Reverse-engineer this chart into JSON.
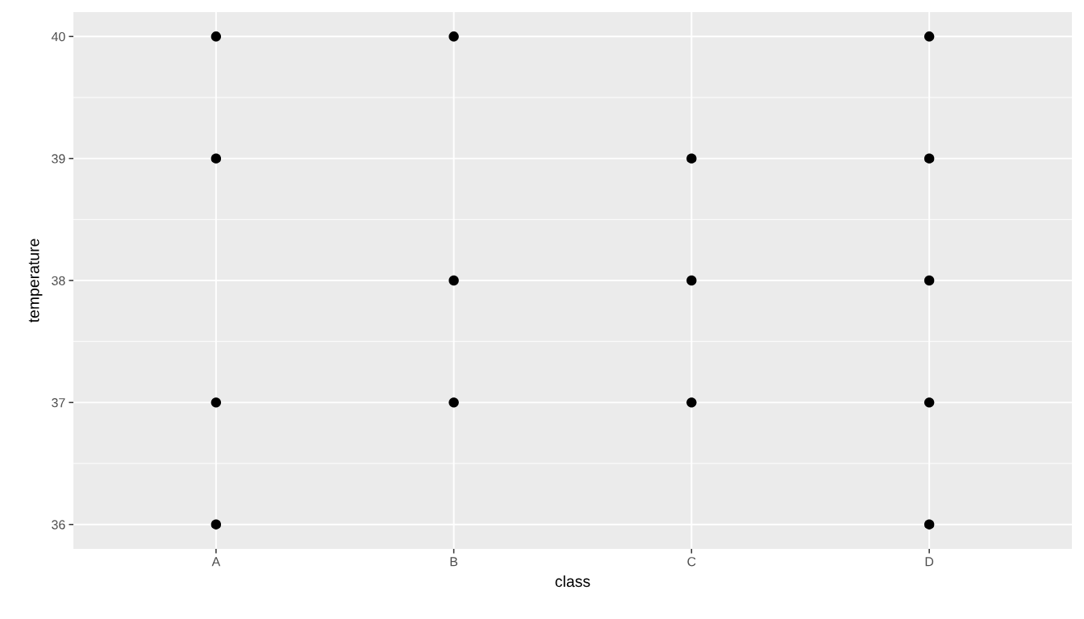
{
  "chart_data": {
    "type": "scatter",
    "xlabel": "class",
    "ylabel": "temperature",
    "categories": [
      "A",
      "B",
      "C",
      "D"
    ],
    "series": [
      {
        "color": "#000000",
        "x": [
          "A",
          "A",
          "A",
          "A",
          "B",
          "B",
          "B",
          "C",
          "C",
          "C",
          "D",
          "D",
          "D",
          "D",
          "D"
        ],
        "values": [
          40,
          39,
          37,
          36,
          40,
          38,
          37,
          39,
          38,
          37,
          40,
          39,
          38,
          37,
          36
        ]
      }
    ],
    "ylim": [
      35.8,
      40.2
    ],
    "yticks": [
      36,
      {
        "value": 36.5,
        "label": null
      },
      37,
      {
        "value": 37.5,
        "label": null
      },
      38,
      {
        "value": 38.5,
        "label": null
      },
      39,
      {
        "value": 39.5,
        "label": null
      },
      40
    ],
    "grid": true,
    "marker": "circle"
  }
}
